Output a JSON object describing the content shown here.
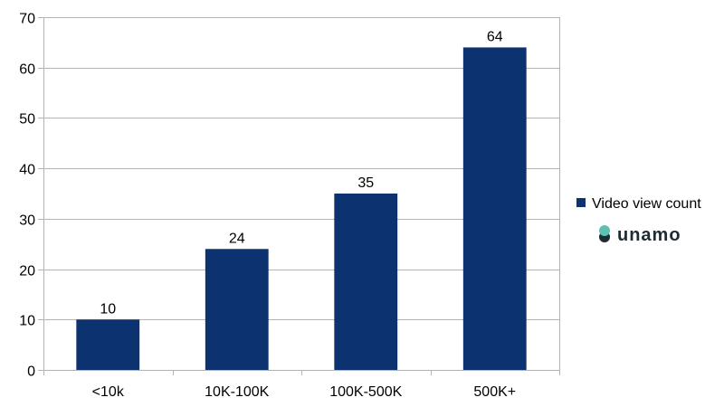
{
  "chart_data": {
    "type": "bar",
    "title": "",
    "xlabel": "",
    "ylabel": "",
    "categories": [
      "<10k",
      "10K-100K",
      "100K-500K",
      "500K+"
    ],
    "series": [
      {
        "name": "Video view count",
        "values": [
          10,
          24,
          35,
          64
        ],
        "color": "#0d3270"
      }
    ],
    "ylim": [
      0,
      70
    ],
    "yticks": [
      0,
      10,
      20,
      30,
      40,
      50,
      60,
      70
    ],
    "data_labels": true,
    "grid": "horizontal",
    "legend_position": "right"
  },
  "logo": {
    "text": "unamo",
    "icon_colors": [
      "#5fbfb3",
      "#1f2b33"
    ]
  }
}
